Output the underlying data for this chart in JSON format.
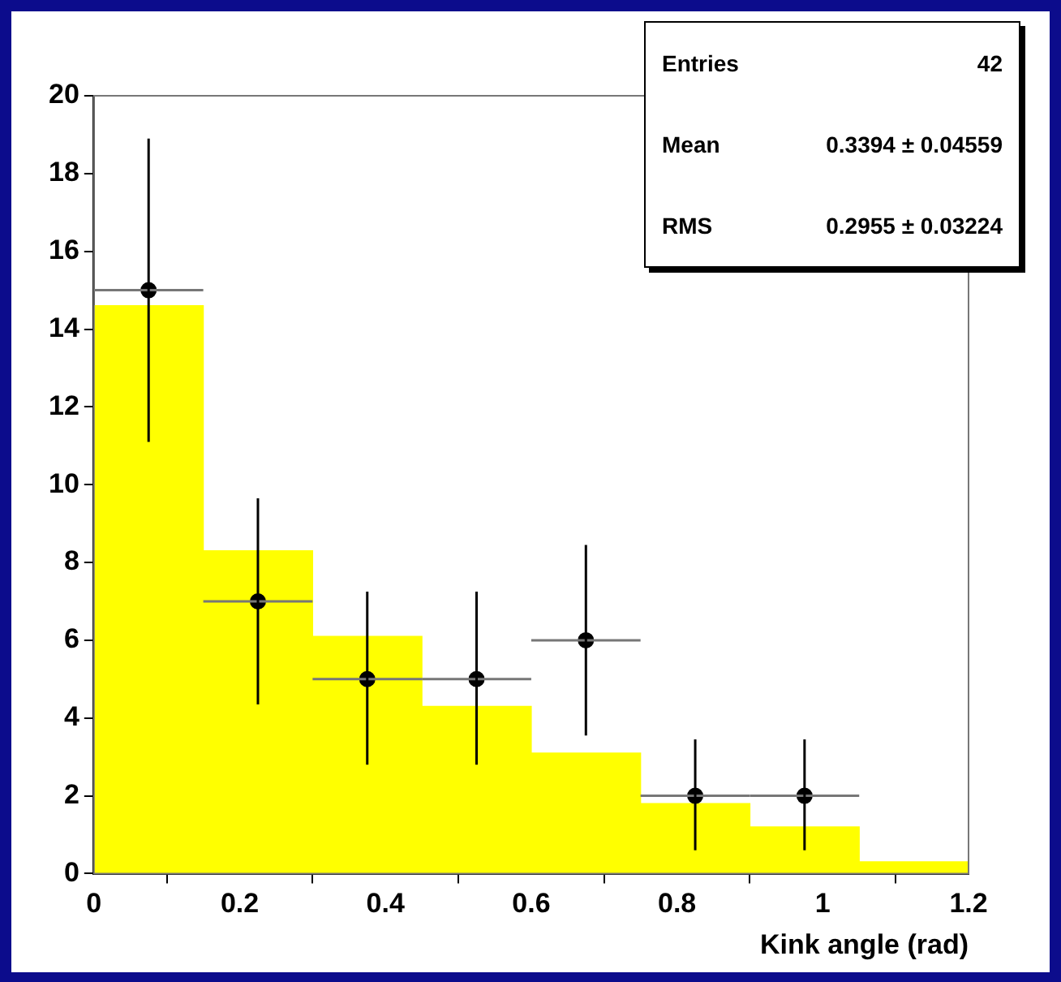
{
  "chart_data": {
    "type": "histogram",
    "xlabel": "Kink angle (rad)",
    "bins": [
      0,
      0.15,
      0.3,
      0.45,
      0.6,
      0.75,
      0.9,
      1.05,
      1.2
    ],
    "series": [
      {
        "color": "#ffff00",
        "values": [
          14.6,
          8.3,
          6.1,
          4.3,
          3.1,
          1.8,
          1.2,
          0.3
        ]
      },
      {
        "type": "scatter",
        "color": "#000000",
        "marker": "circle",
        "x": [
          0.075,
          0.225,
          0.375,
          0.525,
          0.675,
          0.825,
          0.975
        ],
        "values": [
          15,
          7,
          5,
          5,
          6,
          2,
          2
        ],
        "errors": [
          [
            11.1,
            18.9
          ],
          [
            4.35,
            9.65
          ],
          [
            2.8,
            7.25
          ],
          [
            2.8,
            7.25
          ],
          [
            3.55,
            8.45
          ],
          [
            0.6,
            3.45
          ],
          [
            0.6,
            3.45
          ]
        ],
        "xerrors": [
          0.075,
          0.075,
          0.075,
          0.075,
          0.075,
          0.075,
          0.075
        ]
      }
    ],
    "xlim": [
      0,
      1.2
    ],
    "xticks": [
      0,
      0.2,
      0.4,
      0.6,
      0.8,
      1,
      1.2
    ],
    "ylim": [
      0,
      20
    ],
    "yticks": [
      0,
      2,
      4,
      6,
      8,
      10,
      12,
      14,
      16,
      18,
      20
    ],
    "grid": false,
    "legend": false,
    "annotations": [
      "Entries",
      "42",
      "Mean",
      "0.3394 ± 0.04559",
      "RMS",
      "0.2955 ± 0.03224"
    ]
  }
}
